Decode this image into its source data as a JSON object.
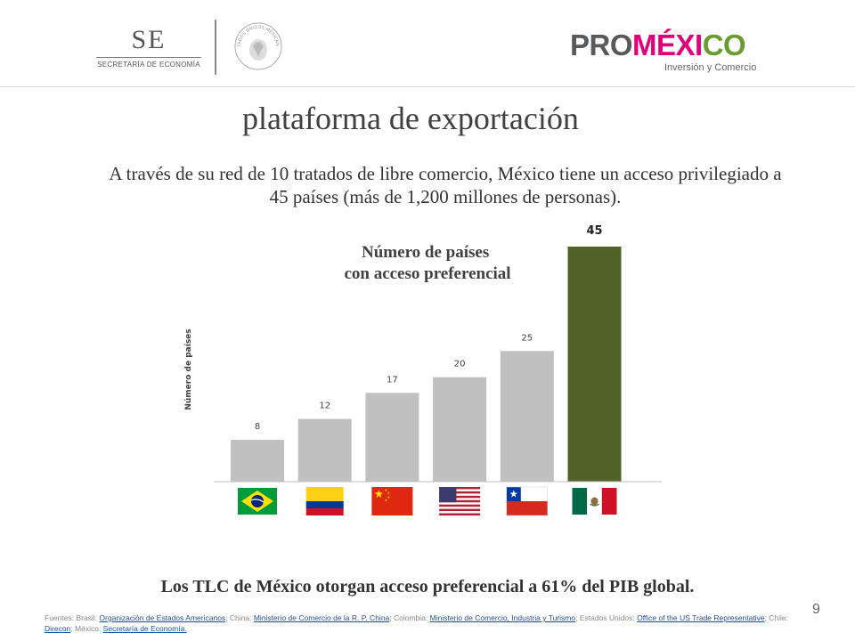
{
  "header": {
    "se_mark": "SE",
    "se_name": "SECRETARÍA DE ECONOMÍA",
    "seal_text": "ESTADOS UNIDOS MEXICANOS",
    "promexico": {
      "pro": "PRO",
      "mex": "MÉXI",
      "co": "CO",
      "tagline": "Inversión y Comercio"
    }
  },
  "title": "plataforma de exportación",
  "intro": "A través de su red de 10 tratados de libre comercio, México tiene un acceso privilegiado a 45 países (más de 1,200 millones de personas).",
  "chart_data": {
    "type": "bar",
    "title": "Número de países\ncon acceso preferencial",
    "ylabel": "Número de países",
    "xlabel": "",
    "categories": [
      "Brasil",
      "Colombia",
      "China",
      "Estados Unidos",
      "Chile",
      "México"
    ],
    "values": [
      8,
      12,
      17,
      20,
      25,
      45
    ],
    "highlight_index": 5,
    "colors": {
      "bar": "#c0c0c0",
      "highlight": "#4f6228"
    },
    "ylim": [
      0,
      45
    ],
    "grid": false,
    "legend": "none",
    "category_display": "flags"
  },
  "conclusion": "Los TLC de México otorgan acceso preferencial a 61% del PIB global.",
  "sources": [
    {
      "prefix": "Fuentes: Brasil: ",
      "link": "Organización de Estados Americanos"
    },
    {
      "prefix": "; China: ",
      "link": "Ministerio de Comercio de la R. P. China"
    },
    {
      "prefix": "; Colombia: ",
      "link": "Ministerio de Comercio, Industria y Turismo"
    },
    {
      "prefix": "; Estados Unidos: ",
      "link": "Office of the US Trade Representative"
    },
    {
      "prefix": "; Chile: ",
      "link": "Direcon"
    },
    {
      "prefix": "; México: ",
      "link": "Secretaría de Economía."
    }
  ],
  "page_number": "9"
}
